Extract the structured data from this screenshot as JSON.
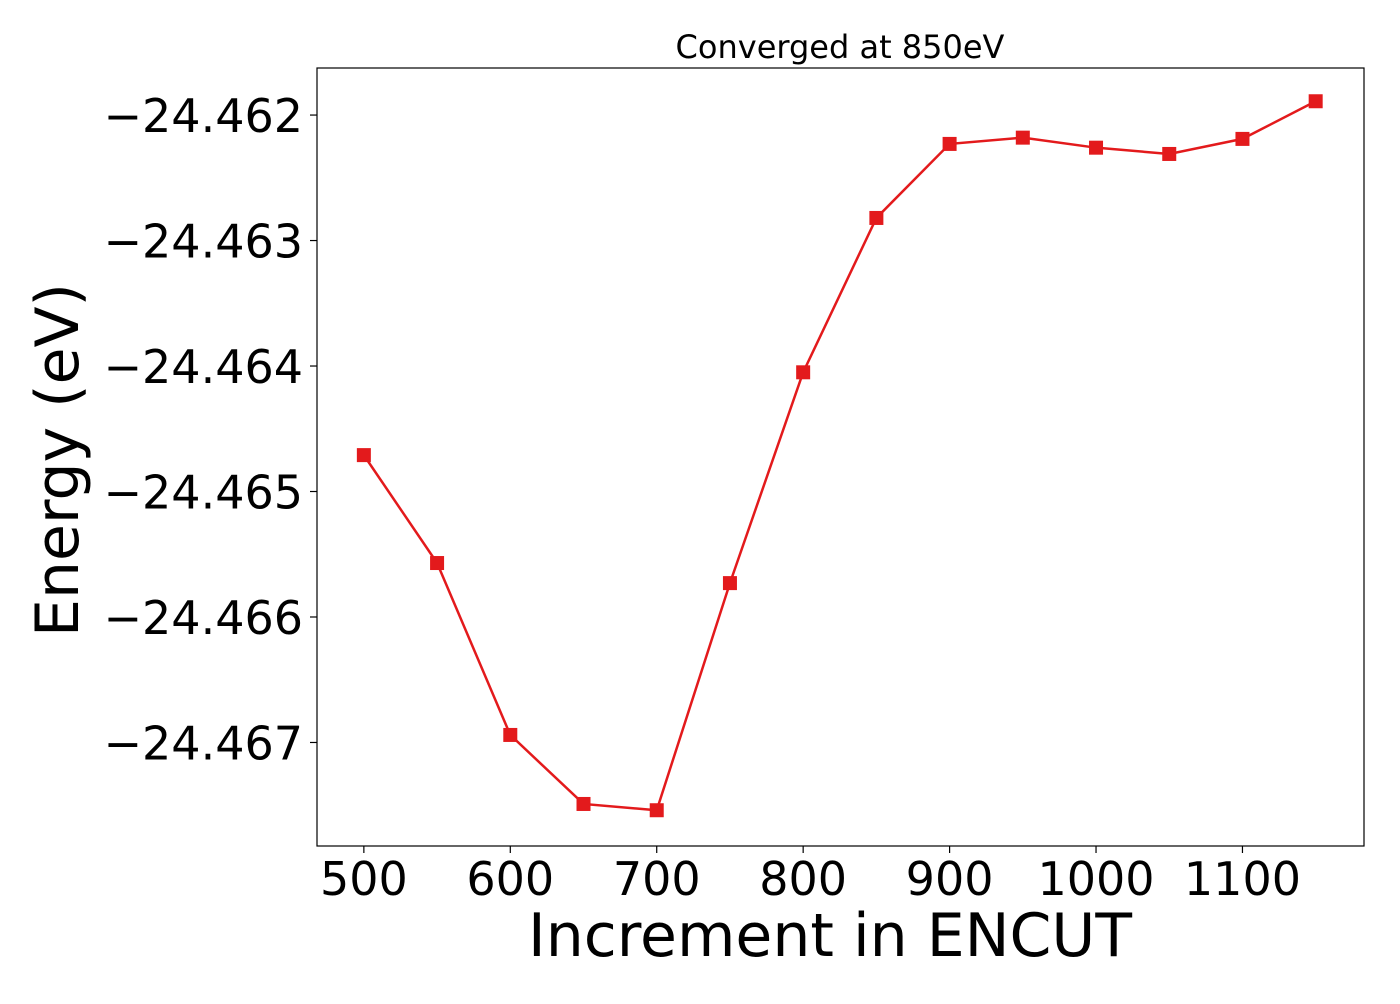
{
  "chart_data": {
    "type": "line",
    "title": "Converged at 850eV",
    "xlabel": "Increment in ENCUT",
    "ylabel": "Energy (eV)",
    "x": [
      500,
      550,
      600,
      650,
      700,
      750,
      800,
      850,
      900,
      950,
      1000,
      1050,
      1100,
      1150
    ],
    "series": [
      {
        "values": [
          -24.46471,
          -24.46557,
          -24.46694,
          -24.46749,
          -24.46754,
          -24.46573,
          -24.46405,
          -24.46282,
          -24.46223,
          -24.46218,
          -24.46226,
          -24.46231,
          -24.46219,
          -24.46189
        ],
        "color": "#e31a1c",
        "marker": "square"
      }
    ],
    "xticks": [
      500,
      600,
      700,
      800,
      900,
      1000,
      1100
    ],
    "xtick_labels": [
      "500",
      "600",
      "700",
      "800",
      "900",
      "1000",
      "1100"
    ],
    "yticks": [
      -24.462,
      -24.463,
      -24.464,
      -24.465,
      -24.466,
      -24.467
    ],
    "ytick_labels": [
      "−24.462",
      "−24.463",
      "−24.464",
      "−24.465",
      "−24.466",
      "−24.467"
    ],
    "xlim": [
      468,
      1183
    ],
    "ylim": [
      -24.467825,
      -24.461625
    ],
    "grid": false,
    "legend": false
  }
}
